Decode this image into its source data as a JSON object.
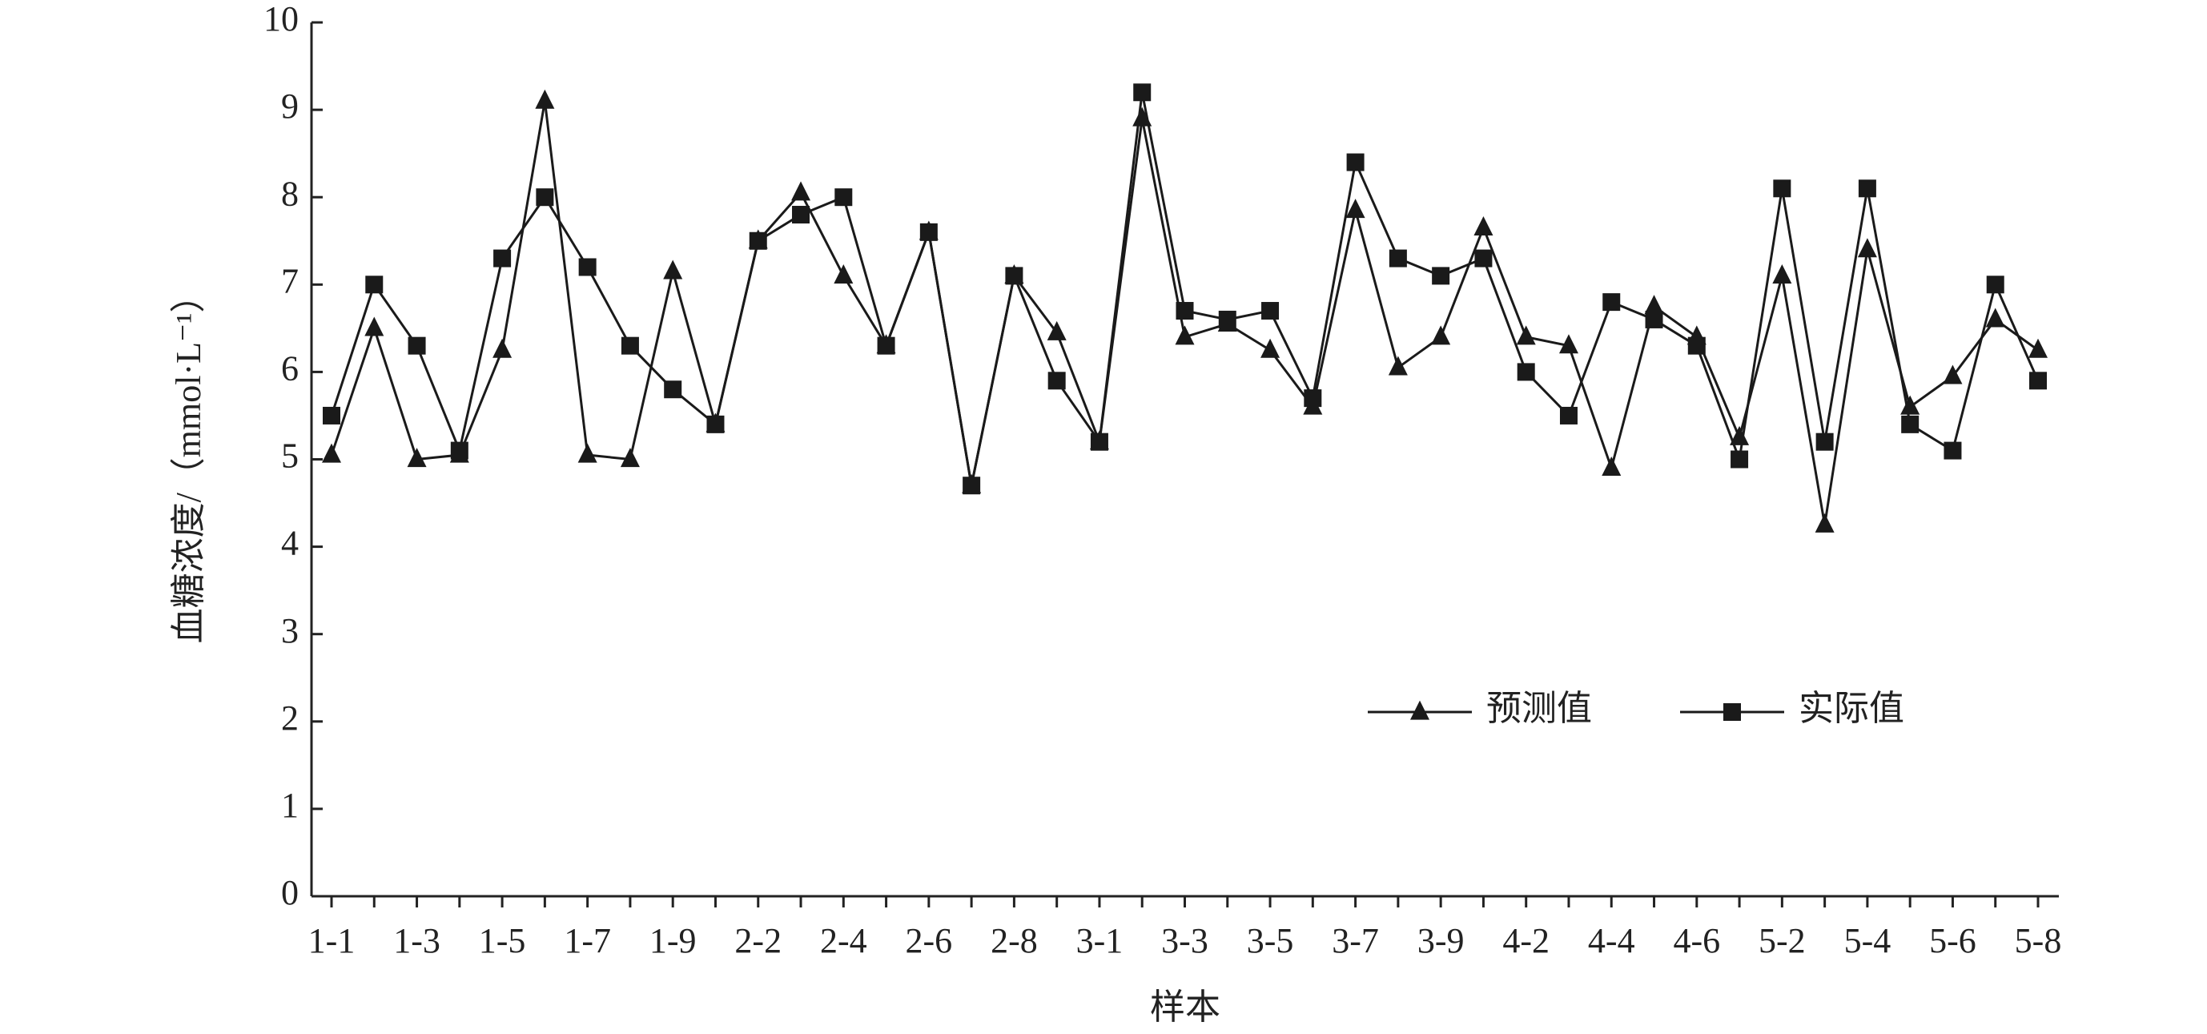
{
  "chart_data": {
    "type": "line",
    "xlabel": "样本",
    "ylabel": "血糖浓度/（mmol·L⁻¹）",
    "categories": [
      "1-1",
      null,
      "1-3",
      null,
      "1-5",
      null,
      "1-7",
      null,
      "1-9",
      null,
      "2-2",
      null,
      "2-4",
      null,
      "2-6",
      null,
      "2-8",
      null,
      "3-1",
      null,
      "3-3",
      null,
      "3-5",
      null,
      "3-7",
      null,
      "3-9",
      null,
      "4-2",
      null,
      "4-4",
      null,
      "4-6",
      null,
      "5-2",
      null,
      "5-4",
      null,
      "5-6",
      null,
      "5-8"
    ],
    "series": [
      {
        "name": "预测值",
        "color": "#1a1a1a",
        "marker": "triangle",
        "values": [
          5.05,
          6.5,
          5.0,
          5.05,
          6.25,
          9.1,
          5.05,
          5.0,
          7.15,
          5.4,
          7.5,
          8.05,
          7.1,
          6.3,
          7.6,
          4.7,
          7.1,
          6.45,
          5.2,
          8.9,
          6.4,
          6.55,
          6.25,
          5.6,
          7.85,
          6.05,
          6.4,
          7.65,
          6.4,
          6.3,
          4.9,
          6.75,
          6.4,
          5.25,
          7.1,
          4.25,
          7.4,
          5.6,
          5.95,
          6.6,
          6.25
        ]
      },
      {
        "name": "实际值",
        "color": "#1a1a1a",
        "marker": "square",
        "values": [
          5.5,
          7.0,
          6.3,
          5.1,
          7.3,
          8.0,
          7.2,
          6.3,
          5.8,
          5.4,
          7.5,
          7.8,
          8.0,
          6.3,
          7.6,
          4.7,
          7.1,
          5.9,
          5.2,
          9.2,
          6.7,
          6.6,
          6.7,
          5.7,
          8.4,
          7.3,
          7.1,
          7.3,
          6.0,
          5.5,
          6.8,
          6.6,
          6.3,
          5.0,
          8.1,
          5.2,
          8.1,
          5.4,
          5.1,
          7.0,
          5.9
        ]
      }
    ],
    "ylim": [
      0,
      10
    ],
    "yticks": [
      0,
      1,
      2,
      3,
      4,
      5,
      6,
      7,
      8,
      9,
      10
    ],
    "grid": false
  }
}
